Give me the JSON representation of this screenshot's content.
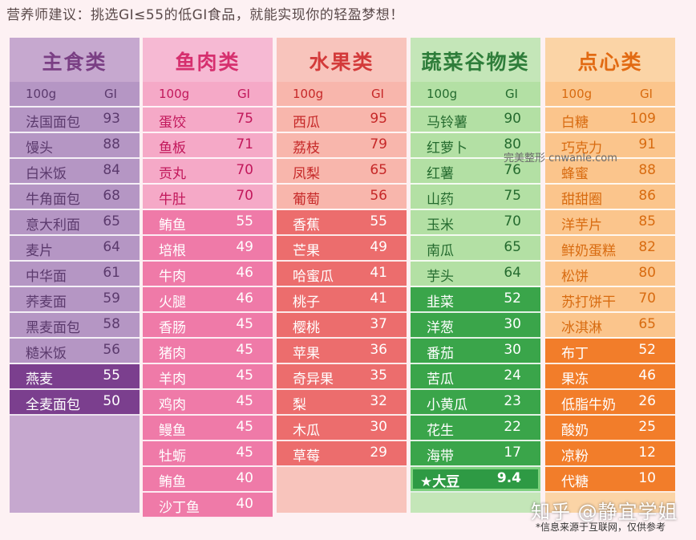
{
  "headline": "营养师建议：挑选GI≤55的低GI食品，就能实现你的轻盈梦想！",
  "header_labels": {
    "weight": "100g",
    "gi": "GI"
  },
  "columns": [
    {
      "title": "主食类",
      "title_color": "#7a3f84",
      "title_bg": "#c6a8cf",
      "body_bg": "#c6a8cf",
      "items": [
        {
          "name": "法国面包",
          "gi": "93"
        },
        {
          "name": "馒头",
          "gi": "88"
        },
        {
          "name": "白米饭",
          "gi": "84"
        },
        {
          "name": "牛角面包",
          "gi": "68"
        },
        {
          "name": "意大利面",
          "gi": "65"
        },
        {
          "name": "麦片",
          "gi": "64"
        },
        {
          "name": "中华面",
          "gi": "61"
        },
        {
          "name": "荞麦面",
          "gi": "59"
        },
        {
          "name": "黑麦面包",
          "gi": "58"
        },
        {
          "name": "糙米饭",
          "gi": "56"
        },
        {
          "name": "燕麦",
          "gi": "55",
          "low": true
        },
        {
          "name": "全麦面包",
          "gi": "50",
          "low": true
        }
      ]
    },
    {
      "title": "鱼肉类",
      "title_color": "#d62f6e",
      "title_bg": "#f6b9d3",
      "body_bg": "#f6b9d3",
      "items": [
        {
          "name": "蛋饺",
          "gi": "75"
        },
        {
          "name": "鱼板",
          "gi": "71"
        },
        {
          "name": "贡丸",
          "gi": "70"
        },
        {
          "name": "牛肚",
          "gi": "70"
        },
        {
          "name": "鲔鱼",
          "gi": "55",
          "low": true
        },
        {
          "name": "培根",
          "gi": "49",
          "low": true
        },
        {
          "name": "牛肉",
          "gi": "46",
          "low": true
        },
        {
          "name": "火腿",
          "gi": "46",
          "low": true
        },
        {
          "name": "香肠",
          "gi": "45",
          "low": true
        },
        {
          "name": "猪肉",
          "gi": "45",
          "low": true
        },
        {
          "name": "羊肉",
          "gi": "45",
          "low": true
        },
        {
          "name": "鸡肉",
          "gi": "45",
          "low": true
        },
        {
          "name": "鳗鱼",
          "gi": "45",
          "low": true
        },
        {
          "name": "牡蛎",
          "gi": "45",
          "low": true
        },
        {
          "name": "鲔鱼",
          "gi": "40",
          "low": true
        },
        {
          "name": "沙丁鱼",
          "gi": "40",
          "low": true
        }
      ]
    },
    {
      "title": "水果类",
      "title_color": "#d33a3a",
      "title_bg": "#f8c4bc",
      "body_bg": "#f8c4bc",
      "items": [
        {
          "name": "西瓜",
          "gi": "95"
        },
        {
          "name": "荔枝",
          "gi": "79"
        },
        {
          "name": "凤梨",
          "gi": "65"
        },
        {
          "name": "葡萄",
          "gi": "56"
        },
        {
          "name": "香蕉",
          "gi": "55",
          "low": true
        },
        {
          "name": "芒果",
          "gi": "49",
          "low": true
        },
        {
          "name": "哈蜜瓜",
          "gi": "41",
          "low": true
        },
        {
          "name": "桃子",
          "gi": "41",
          "low": true
        },
        {
          "name": "樱桃",
          "gi": "37",
          "low": true
        },
        {
          "name": "苹果",
          "gi": "36",
          "low": true
        },
        {
          "name": "奇异果",
          "gi": "35",
          "low": true
        },
        {
          "name": "梨",
          "gi": "32",
          "low": true
        },
        {
          "name": "木瓜",
          "gi": "30",
          "low": true
        },
        {
          "name": "草莓",
          "gi": "29",
          "low": true
        }
      ]
    },
    {
      "title": "蔬菜谷物类",
      "title_color": "#2e7d3a",
      "title_bg": "#c4e6b8",
      "body_bg": "#c4e6b8",
      "items": [
        {
          "name": "马铃薯",
          "gi": "90"
        },
        {
          "name": "红萝卜",
          "gi": "80"
        },
        {
          "name": "红薯",
          "gi": "76"
        },
        {
          "name": "山药",
          "gi": "75"
        },
        {
          "name": "玉米",
          "gi": "70"
        },
        {
          "name": "南瓜",
          "gi": "65"
        },
        {
          "name": "芋头",
          "gi": "64"
        },
        {
          "name": "韭菜",
          "gi": "52",
          "low": true
        },
        {
          "name": "洋葱",
          "gi": "30",
          "low": true
        },
        {
          "name": "番茄",
          "gi": "30",
          "low": true
        },
        {
          "name": "苦瓜",
          "gi": "24",
          "low": true
        },
        {
          "name": "小黄瓜",
          "gi": "23",
          "low": true
        },
        {
          "name": "花生",
          "gi": "22",
          "low": true
        },
        {
          "name": "海带",
          "gi": "17",
          "low": true
        },
        {
          "name": "★大豆",
          "gi": "9.4",
          "low": true,
          "special": true
        }
      ]
    },
    {
      "title": "点心类",
      "title_color": "#e26a12",
      "title_bg": "#fbd4a6",
      "body_bg": "#fbd4a6",
      "items": [
        {
          "name": "白糖",
          "gi": "109"
        },
        {
          "name": "巧克力",
          "gi": "91"
        },
        {
          "name": "蜂蜜",
          "gi": "88"
        },
        {
          "name": "甜甜圈",
          "gi": "86"
        },
        {
          "name": "洋芋片",
          "gi": "85"
        },
        {
          "name": "鲜奶蛋糕",
          "gi": "82"
        },
        {
          "name": "松饼",
          "gi": "80"
        },
        {
          "name": "苏打饼干",
          "gi": "70"
        },
        {
          "name": "冰淇淋",
          "gi": "65"
        },
        {
          "name": "布丁",
          "gi": "52",
          "low": true
        },
        {
          "name": "果冻",
          "gi": "46",
          "low": true
        },
        {
          "name": "低脂牛奶",
          "gi": "26",
          "low": true
        },
        {
          "name": "酸奶",
          "gi": "25",
          "low": true
        },
        {
          "name": "凉粉",
          "gi": "12",
          "low": true
        },
        {
          "name": "代糖",
          "gi": "10",
          "low": true
        }
      ]
    }
  ],
  "palette": {
    "grain": {
      "high_bg": "#b596c4",
      "high_text": "#5b3a6d",
      "low_bg": "#7b3f8e",
      "low_text": "#ffffff",
      "hdr_bg": "#b596c4"
    },
    "meat": {
      "high_bg": "#f5a9c7",
      "high_text": "#c2185b",
      "low_bg": "#ef7aa8",
      "low_text": "#ffffff",
      "hdr_bg": "#f5a9c7"
    },
    "fruit": {
      "high_bg": "#f8b6ac",
      "high_text": "#c62828",
      "low_bg": "#ec6d6d",
      "low_text": "#ffffff",
      "hdr_bg": "#f8b6ac"
    },
    "veg": {
      "high_bg": "#b3e0a4",
      "high_text": "#256b2f",
      "low_bg": "#3aa54a",
      "low_text": "#ffffff",
      "hdr_bg": "#b3e0a4"
    },
    "snack": {
      "high_bg": "#fbc58c",
      "high_text": "#d86b10",
      "low_bg": "#f27d2a",
      "low_text": "#ffffff",
      "hdr_bg": "#fbc58c"
    }
  },
  "watermark": "完美整形 cnwanle.com",
  "zhihu_mark": "知乎 @静宜学姐",
  "source_note": "*信息来源于互联网，仅供参考"
}
